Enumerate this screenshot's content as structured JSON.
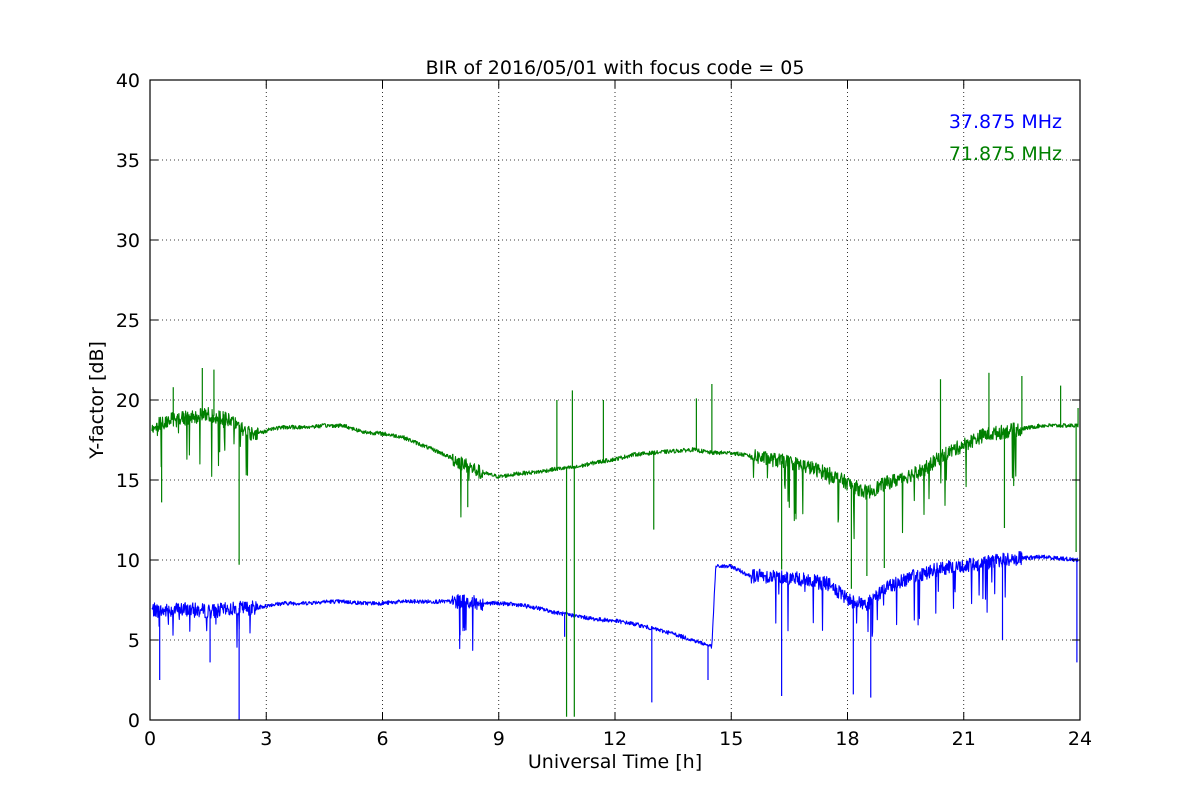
{
  "chart_data": {
    "type": "line",
    "title": "BIR of 2016/05/01 with focus code = 05",
    "xlabel": "Universal Time [h]",
    "ylabel": "Y-factor [dB]",
    "xlim": [
      0,
      24
    ],
    "ylim": [
      0,
      40
    ],
    "xticks": [
      0,
      3,
      6,
      9,
      12,
      15,
      18,
      21,
      24
    ],
    "yticks": [
      0,
      5,
      10,
      15,
      20,
      25,
      30,
      35,
      40
    ],
    "grid": true,
    "legend_position": "top-right",
    "series": [
      {
        "name": "37.875 MHz",
        "color": "#0000ff",
        "x": [
          0.05,
          0.3,
          0.6,
          1.0,
          1.5,
          2.0,
          2.3,
          2.6,
          2.95,
          3.1,
          3.5,
          4.0,
          4.5,
          5.0,
          5.5,
          6.0,
          6.5,
          7.0,
          7.5,
          8.0,
          8.5,
          9.0,
          9.5,
          10.0,
          10.5,
          11.0,
          11.5,
          12.0,
          12.5,
          13.0,
          13.5,
          14.0,
          14.5,
          14.6,
          14.8,
          15.0,
          15.5,
          16.0,
          16.5,
          17.0,
          17.5,
          18.0,
          18.5,
          19.0,
          19.5,
          20.0,
          20.5,
          21.0,
          21.5,
          22.0,
          22.5,
          23.0,
          23.5,
          23.95
        ],
        "y": [
          6.9,
          6.8,
          6.9,
          6.9,
          6.8,
          6.9,
          7.0,
          7.0,
          7.1,
          7.2,
          7.3,
          7.3,
          7.4,
          7.4,
          7.3,
          7.3,
          7.4,
          7.4,
          7.4,
          7.4,
          7.3,
          7.3,
          7.2,
          7.0,
          6.7,
          6.5,
          6.3,
          6.2,
          6.0,
          5.7,
          5.4,
          5.0,
          4.6,
          9.6,
          9.6,
          9.6,
          9.0,
          9.0,
          8.9,
          8.7,
          8.5,
          7.5,
          7.2,
          8.3,
          8.8,
          9.2,
          9.5,
          9.6,
          9.8,
          10.0,
          10.1,
          10.2,
          10.1,
          10.0
        ],
        "dips": [
          [
            0.25,
            2.5
          ],
          [
            1.55,
            3.6
          ],
          [
            2.3,
            0.0
          ],
          [
            8.0,
            5.3
          ],
          [
            10.7,
            5.2
          ],
          [
            12.95,
            1.1
          ],
          [
            14.4,
            2.5
          ],
          [
            16.3,
            1.5
          ],
          [
            18.15,
            1.6
          ],
          [
            18.6,
            1.4
          ],
          [
            22.0,
            5.0
          ],
          [
            23.92,
            3.6
          ]
        ]
      },
      {
        "name": "71.875 MHz",
        "color": "#008000",
        "x": [
          0.05,
          0.3,
          0.6,
          1.0,
          1.5,
          2.0,
          2.3,
          2.6,
          2.95,
          3.1,
          3.5,
          4.0,
          4.5,
          5.0,
          5.5,
          6.0,
          6.5,
          7.0,
          7.5,
          8.0,
          8.5,
          9.0,
          9.5,
          10.0,
          10.5,
          11.0,
          11.5,
          12.0,
          12.5,
          13.0,
          13.5,
          14.0,
          14.5,
          15.0,
          15.5,
          16.0,
          16.5,
          17.0,
          17.5,
          18.0,
          18.5,
          19.0,
          19.5,
          20.0,
          20.5,
          21.0,
          21.5,
          22.0,
          22.5,
          23.0,
          23.5,
          23.95
        ],
        "y": [
          18.2,
          18.6,
          18.8,
          18.9,
          19.1,
          18.8,
          18.3,
          17.9,
          18.0,
          18.2,
          18.3,
          18.3,
          18.4,
          18.4,
          18.0,
          17.9,
          17.7,
          17.2,
          16.7,
          16.1,
          15.5,
          15.2,
          15.4,
          15.5,
          15.7,
          15.8,
          16.1,
          16.3,
          16.6,
          16.7,
          16.8,
          16.9,
          16.7,
          16.7,
          16.5,
          16.3,
          16.1,
          15.8,
          15.4,
          14.8,
          14.2,
          14.8,
          15.2,
          15.7,
          16.6,
          17.2,
          17.8,
          18.0,
          18.2,
          18.4,
          18.4,
          18.4
        ],
        "dips": [
          [
            0.3,
            13.6
          ],
          [
            2.3,
            9.7
          ],
          [
            8.2,
            13.3
          ],
          [
            10.75,
            0.2
          ],
          [
            10.95,
            0.2
          ],
          [
            13.0,
            11.9
          ],
          [
            16.3,
            9.4
          ],
          [
            18.1,
            8.2
          ],
          [
            18.5,
            9.0
          ],
          [
            18.95,
            9.5
          ],
          [
            22.05,
            12.0
          ],
          [
            23.9,
            10.5
          ]
        ],
        "spikes": [
          [
            0.6,
            20.8
          ],
          [
            1.35,
            22.0
          ],
          [
            1.65,
            21.9
          ],
          [
            10.5,
            20.0
          ],
          [
            10.9,
            20.6
          ],
          [
            11.7,
            20.0
          ],
          [
            14.1,
            20.1
          ],
          [
            14.5,
            21.0
          ],
          [
            20.4,
            21.3
          ],
          [
            21.65,
            21.7
          ],
          [
            22.5,
            21.5
          ],
          [
            23.5,
            20.9
          ],
          [
            23.95,
            19.5
          ]
        ]
      }
    ]
  }
}
